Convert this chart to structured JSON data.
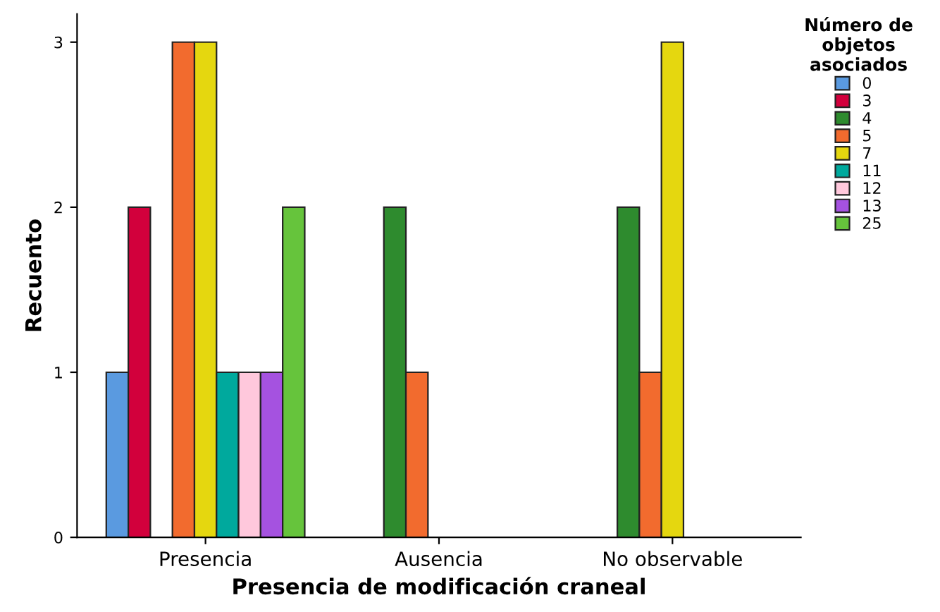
{
  "chart_data": {
    "type": "bar",
    "xlabel": "Presencia de modificación craneal",
    "ylabel": "Recuento",
    "legend_title": "Número de\nobjetos\nasociados",
    "legend": "right",
    "categories": [
      "Presencia",
      "Ausencia",
      "No observable"
    ],
    "series": [
      {
        "name": "0",
        "color": "#5a9ae0",
        "values": [
          1,
          null,
          null
        ]
      },
      {
        "name": "3",
        "color": "#d2003c",
        "values": [
          2,
          null,
          null
        ]
      },
      {
        "name": "4",
        "color": "#2e8b2e",
        "values": [
          null,
          2,
          2
        ]
      },
      {
        "name": "5",
        "color": "#f26b2e",
        "values": [
          3,
          1,
          1
        ]
      },
      {
        "name": "7",
        "color": "#e5d70f",
        "values": [
          3,
          null,
          3
        ]
      },
      {
        "name": "11",
        "color": "#00a99d",
        "values": [
          1,
          null,
          null
        ]
      },
      {
        "name": "12",
        "color": "#ffc8dc",
        "values": [
          1,
          null,
          null
        ]
      },
      {
        "name": "13",
        "color": "#a552e0",
        "values": [
          1,
          null,
          null
        ]
      },
      {
        "name": "25",
        "color": "#66c43c",
        "values": [
          2,
          null,
          null
        ]
      }
    ],
    "ylim": [
      0,
      3.17
    ],
    "yticks": [
      0,
      1,
      2,
      3
    ],
    "grid": false
  }
}
